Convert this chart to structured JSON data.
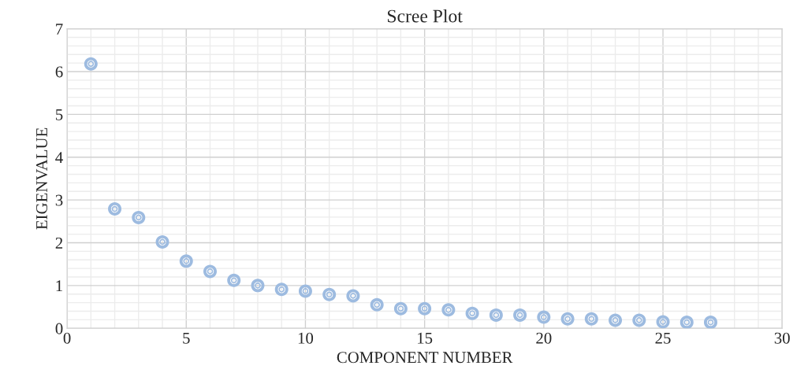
{
  "chart_data": {
    "type": "scatter",
    "title": "Scree Plot",
    "xlabel": "COMPONENT NUMBER",
    "ylabel": "EIGENVALUE",
    "x": [
      1,
      2,
      3,
      4,
      5,
      6,
      7,
      8,
      9,
      10,
      11,
      12,
      13,
      14,
      15,
      16,
      17,
      18,
      19,
      20,
      21,
      22,
      23,
      24,
      25,
      26,
      27
    ],
    "series": [
      {
        "color": "#9dbbe0",
        "values": [
          6.18,
          2.79,
          2.59,
          2.02,
          1.57,
          1.33,
          1.12,
          1.0,
          0.91,
          0.87,
          0.79,
          0.76,
          0.55,
          0.46,
          0.46,
          0.43,
          0.35,
          0.31,
          0.31,
          0.26,
          0.22,
          0.22,
          0.19,
          0.19,
          0.15,
          0.14,
          0.14
        ]
      }
    ],
    "xlim": [
      0,
      30
    ],
    "xticks": [
      0,
      5,
      10,
      15,
      20,
      25,
      30
    ],
    "ylim": [
      0,
      7
    ],
    "yticks": [
      0,
      1,
      2,
      3,
      4,
      5,
      6,
      7
    ],
    "grid": true,
    "marker": "circle"
  }
}
